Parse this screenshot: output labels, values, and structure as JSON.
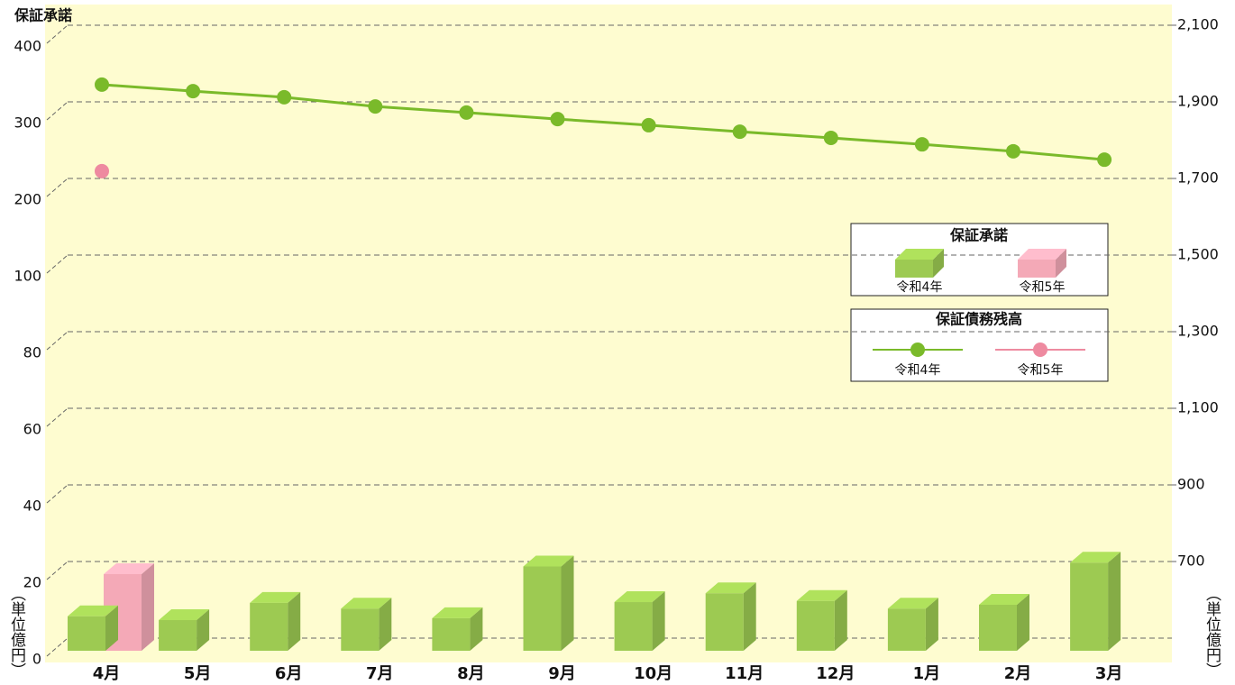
{
  "chart_data": {
    "type": "bar-line",
    "title": "保証承諾",
    "ylabel": "（単位億円）",
    "y2label": "（単位億円）",
    "categories": [
      "4月",
      "5月",
      "6月",
      "7月",
      "8月",
      "9月",
      "10月",
      "11月",
      "12月",
      "1月",
      "2月",
      "3月"
    ],
    "ylim": [
      0,
      400
    ],
    "yticks": [
      0,
      20,
      40,
      60,
      80,
      100,
      200,
      300,
      400
    ],
    "y2lim": [
      500,
      2100
    ],
    "y2ticks": [
      {
        "value": 700,
        "label": "700"
      },
      {
        "value": 900,
        "label": "900"
      },
      {
        "value": 1100,
        "label": "1,100"
      },
      {
        "value": 1300,
        "label": "1,300"
      },
      {
        "value": 1500,
        "label": "1,500"
      },
      {
        "value": 1700,
        "label": "1,700"
      },
      {
        "value": 1900,
        "label": "1,900"
      },
      {
        "value": 2100,
        "label": "2,100"
      }
    ],
    "grid": true,
    "legend_titles": [
      "保証承諾",
      "保証債務残高"
    ],
    "series": [
      {
        "name": "令和4年",
        "type": "bar",
        "color": "#9dca52",
        "values": [
          9,
          8,
          12.5,
          11,
          8.5,
          22,
          12.7,
          15,
          13,
          11,
          12,
          23
        ]
      },
      {
        "name": "令和5年",
        "type": "bar",
        "color": "#f4a9b7",
        "values": [
          20,
          null,
          null,
          null,
          null,
          null,
          null,
          null,
          null,
          null,
          null,
          null
        ]
      },
      {
        "name": "令和4年",
        "type": "line",
        "axis": "y2",
        "color": "#7aba2a",
        "values": [
          1945,
          1928,
          1912,
          1888,
          1872,
          1855,
          1839,
          1822,
          1806,
          1789,
          1771,
          1749
        ]
      },
      {
        "name": "令和5年",
        "type": "line",
        "axis": "y2",
        "color": "#ee8aa0",
        "values": [
          1719,
          null,
          null,
          null,
          null,
          null,
          null,
          null,
          null,
          null,
          null,
          null
        ]
      }
    ]
  }
}
